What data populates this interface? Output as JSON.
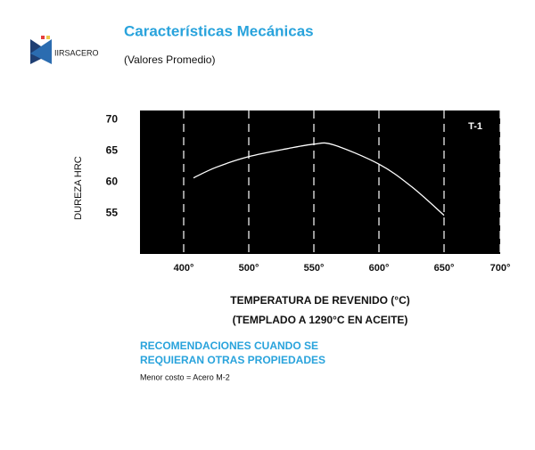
{
  "logo": "IIRSACERO",
  "chart_data": {
    "type": "line",
    "title": "Características Mecánicas",
    "subtitle": "(Valores Promedio)",
    "ylabel": "DUREZA HRC",
    "xlabel": "TEMPERATURA DE REVENIDO (°C)",
    "xlabel_note": "(TEMPLADO A 1290°C EN ACEITE)",
    "annotation": "T-1",
    "x": [
      415,
      450,
      500,
      530,
      550,
      565,
      600,
      625,
      650
    ],
    "series": [
      {
        "color": "#ffffff",
        "values": [
          60.7,
          62.4,
          64.1,
          65.4,
          66.1,
          66.0,
          62.9,
          59.3,
          54.7
        ]
      }
    ],
    "xlim": [
      333,
      700
    ],
    "ylim": [
      48.5,
      71.5
    ],
    "xticks": [
      {
        "value": 400,
        "label": "400°"
      },
      {
        "value": 500,
        "label": "500°"
      },
      {
        "value": 550,
        "label": "550°"
      },
      {
        "value": 600,
        "label": "600°"
      },
      {
        "value": 650,
        "label": "650°"
      },
      {
        "value": 700,
        "label": "700°"
      }
    ],
    "yticks": [
      55,
      60,
      65,
      70
    ],
    "grid": true,
    "background": "#000000"
  },
  "recommendations": {
    "heading": [
      "RECOMENDACIONES CUANDO SE",
      "REQUIERAN OTRAS PROPIEDADES"
    ],
    "note": "Menor costo = Acero M-2"
  }
}
